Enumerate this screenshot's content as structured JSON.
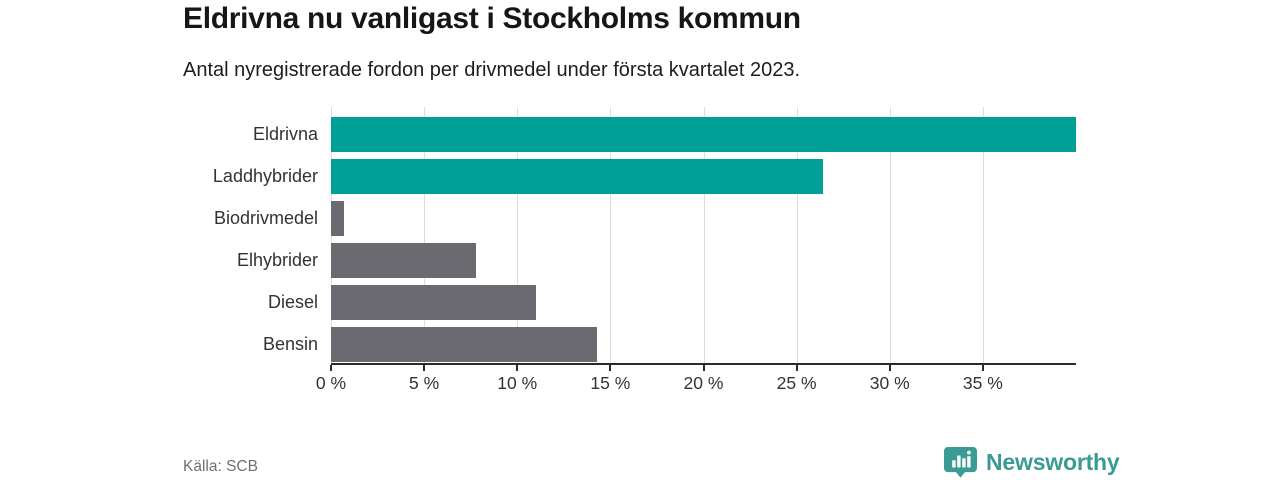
{
  "chart_data": {
    "type": "bar",
    "orientation": "horizontal",
    "title": "Eldrivna nu vanligast i Stockholms kommun",
    "subtitle": "Antal nyregistrerade fordon per drivmedel under första kvartalet 2023.",
    "categories": [
      "Eldrivna",
      "Laddhybrider",
      "Biodrivmedel",
      "Elhybrider",
      "Diesel",
      "Bensin"
    ],
    "values": [
      40.0,
      26.4,
      0.7,
      7.8,
      11.0,
      14.3
    ],
    "unit": "%",
    "xlim": [
      0,
      40
    ],
    "xticks": [
      0,
      5,
      10,
      15,
      20,
      25,
      30,
      35
    ],
    "xtick_labels": [
      "0 %",
      "5 %",
      "10 %",
      "15 %",
      "20 %",
      "25 %",
      "30 %",
      "35 %"
    ],
    "bar_colors": [
      "#00a096",
      "#00a096",
      "#6a6a70",
      "#6a6a70",
      "#6a6a70",
      "#6a6a70"
    ],
    "highlight_color": "#00a096",
    "default_color": "#6a6a70",
    "gridline_color": "#dedede",
    "axis_color": "#2b2b2b",
    "grid": true,
    "legend": false
  },
  "footer": {
    "source": "Källa: SCB",
    "logo_text": "Newsworthy",
    "logo_color": "#3a9a94"
  }
}
